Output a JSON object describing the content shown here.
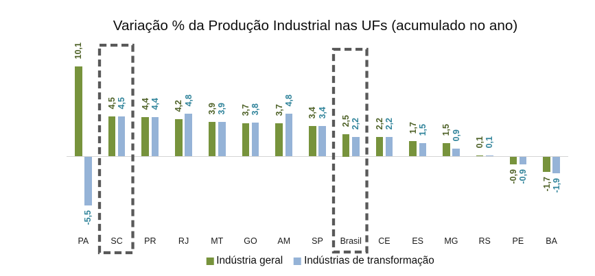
{
  "chart_data": {
    "type": "bar",
    "title": "Variação % da Produção Industrial nas UFs (acumulado no ano)",
    "categories": [
      "PA",
      "SC",
      "PR",
      "RJ",
      "MT",
      "GO",
      "AM",
      "SP",
      "Brasil",
      "CE",
      "ES",
      "MG",
      "RS",
      "PE",
      "BA"
    ],
    "series": [
      {
        "name": "Indústria geral",
        "bar_color": "#77933C",
        "label_color": "#4F6228",
        "values": [
          10.1,
          4.5,
          4.4,
          4.2,
          3.9,
          3.7,
          3.7,
          3.4,
          2.5,
          2.2,
          1.7,
          1.5,
          0.1,
          -0.9,
          -1.7
        ],
        "labels": [
          "10,1",
          "4,5",
          "4,4",
          "4,2",
          "3,9",
          "3,7",
          "3,7",
          "3,4",
          "2,5",
          "2,2",
          "1,7",
          "1,5",
          "0,1",
          "-0,9",
          "-1,7"
        ]
      },
      {
        "name": "Indústrias de transformação",
        "bar_color": "#95B3D7",
        "label_color": "#31849B",
        "values": [
          -5.5,
          4.5,
          4.4,
          4.8,
          3.9,
          3.8,
          4.8,
          3.4,
          2.2,
          2.2,
          1.5,
          0.9,
          0.1,
          -0.9,
          -1.9
        ],
        "labels": [
          "-5,5",
          "4,5",
          "4,4",
          "4,8",
          "3,9",
          "3,8",
          "4,8",
          "3,4",
          "2,2",
          "2,2",
          "1,5",
          "0,9",
          "0,1",
          "-0,9",
          "-1,9"
        ]
      }
    ],
    "highlighted_categories": [
      "SC",
      "Brasil"
    ],
    "highlight_box_color": "#595959",
    "axis_line_color": "#D5D5D5",
    "decimal_separator": ",",
    "grid": false,
    "legend_position": "bottom",
    "ylim": [
      -6.5,
      11
    ]
  },
  "legend": {
    "items": [
      {
        "label": "Indústria geral",
        "color": "#77933C"
      },
      {
        "label": "Indústrias de transformação",
        "color": "#95B3D7"
      }
    ]
  }
}
